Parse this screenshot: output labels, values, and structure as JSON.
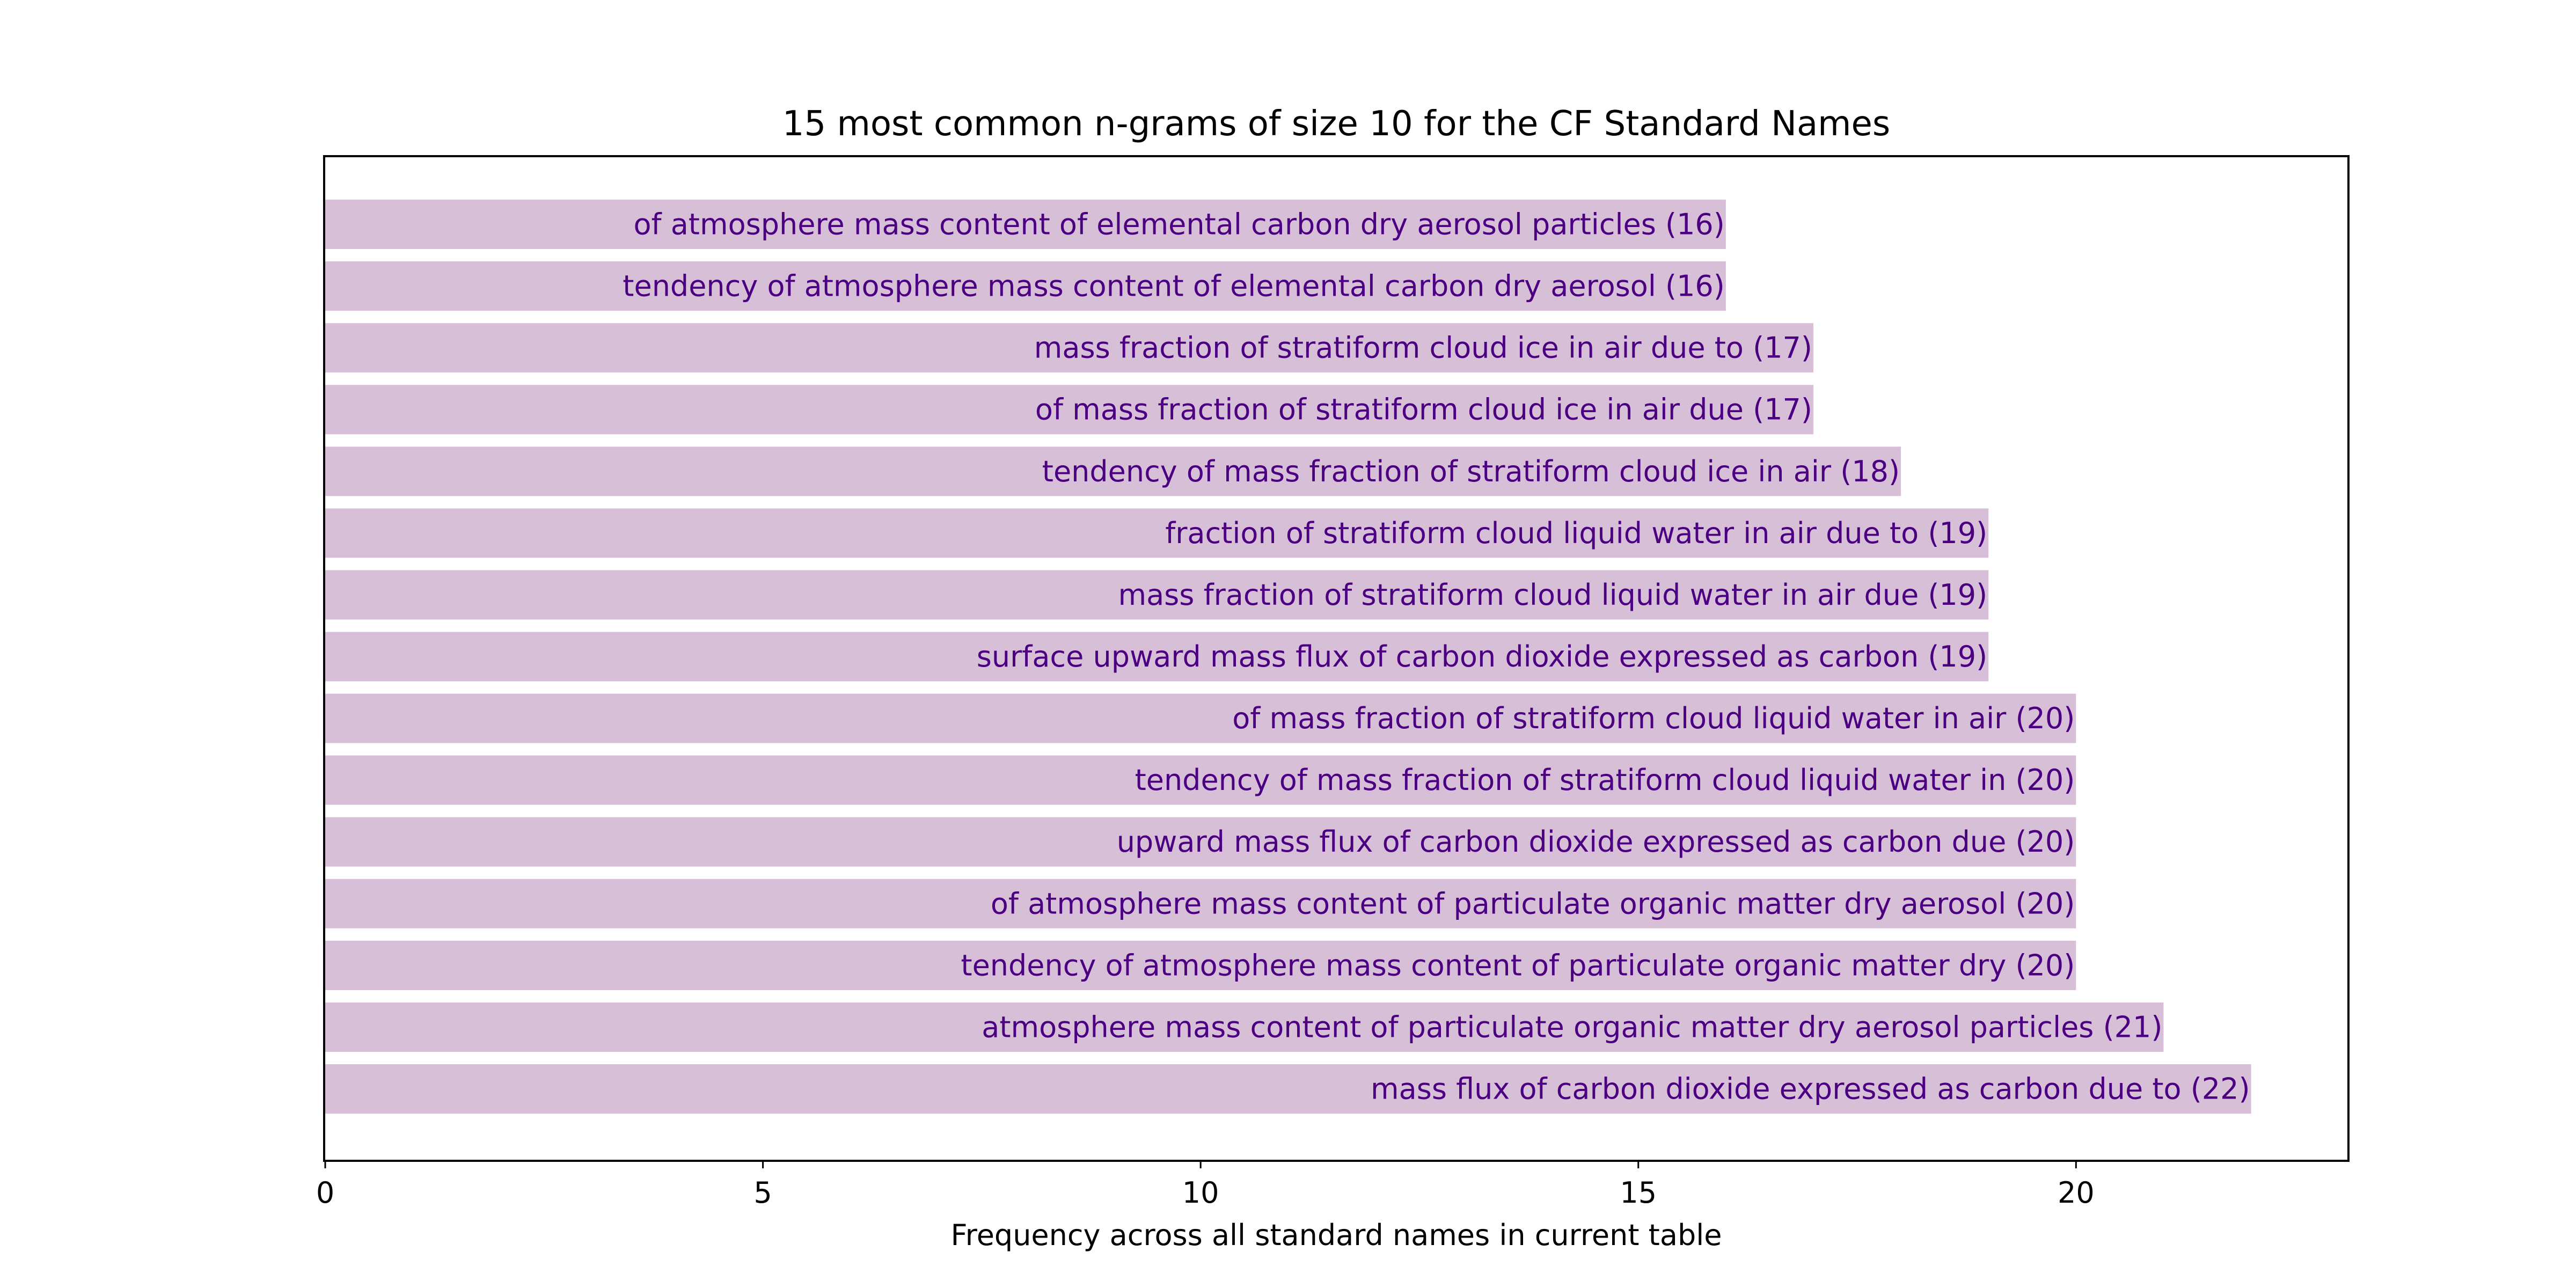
{
  "chart_data": {
    "type": "bar",
    "orientation": "horizontal",
    "title": "15 most common n-grams of size 10 for the CF Standard Names",
    "xlabel": "Frequency across all standard names in current table",
    "ylabel": "",
    "xlim": [
      0,
      23.1
    ],
    "xticks": [
      0,
      5,
      10,
      15,
      20
    ],
    "grid": false,
    "bar_color": "#d8bfd8",
    "label_color": "#4b0082",
    "categories": [
      "of atmosphere mass content of elemental carbon dry aerosol particles",
      "tendency of atmosphere mass content of elemental carbon dry aerosol",
      "mass fraction of stratiform cloud ice in air due to",
      "of mass fraction of stratiform cloud ice in air due",
      "tendency of mass fraction of stratiform cloud ice in air",
      "fraction of stratiform cloud liquid water in air due to",
      "mass fraction of stratiform cloud liquid water in air due",
      "surface upward mass flux of carbon dioxide expressed as carbon",
      "of mass fraction of stratiform cloud liquid water in air",
      "tendency of mass fraction of stratiform cloud liquid water in",
      "upward mass flux of carbon dioxide expressed as carbon due",
      "of atmosphere mass content of particulate organic matter dry aerosol",
      "tendency of atmosphere mass content of particulate organic matter dry",
      "atmosphere mass content of particulate organic matter dry aerosol particles",
      "mass flux of carbon dioxide expressed as carbon due to"
    ],
    "values": [
      16,
      16,
      17,
      17,
      18,
      19,
      19,
      19,
      20,
      20,
      20,
      20,
      20,
      21,
      22
    ],
    "bar_labels": [
      "of atmosphere mass content of elemental carbon dry aerosol particles (16)",
      "tendency of atmosphere mass content of elemental carbon dry aerosol (16)",
      "mass fraction of stratiform cloud ice in air due to (17)",
      "of mass fraction of stratiform cloud ice in air due (17)",
      "tendency of mass fraction of stratiform cloud ice in air (18)",
      "fraction of stratiform cloud liquid water in air due to (19)",
      "mass fraction of stratiform cloud liquid water in air due (19)",
      "surface upward mass flux of carbon dioxide expressed as carbon (19)",
      "of mass fraction of stratiform cloud liquid water in air (20)",
      "tendency of mass fraction of stratiform cloud liquid water in (20)",
      "upward mass flux of carbon dioxide expressed as carbon due (20)",
      "of atmosphere mass content of particulate organic matter dry aerosol (20)",
      "tendency of atmosphere mass content of particulate organic matter dry (20)",
      "atmosphere mass content of particulate organic matter dry aerosol particles (21)",
      "mass flux of carbon dioxide expressed as carbon due to (22)"
    ]
  }
}
